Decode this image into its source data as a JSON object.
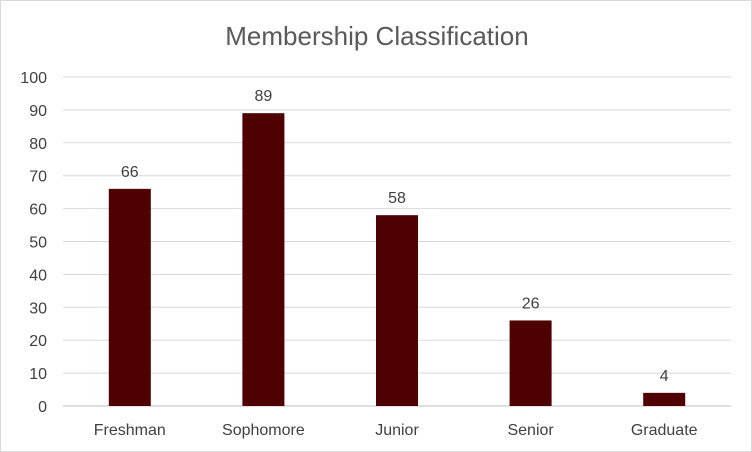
{
  "chart_data": {
    "type": "bar",
    "title": "Membership Classification",
    "xlabel": "",
    "ylabel": "",
    "categories": [
      "Freshman",
      "Sophomore",
      "Junior",
      "Senior",
      "Graduate"
    ],
    "values": [
      66,
      89,
      58,
      26,
      4
    ],
    "ylim": [
      0,
      100
    ],
    "yticks": [
      0,
      10,
      20,
      30,
      40,
      50,
      60,
      70,
      80,
      90,
      100
    ],
    "grid": true,
    "legend": "none",
    "data_labels": true,
    "bar_color": "#4f0000"
  }
}
